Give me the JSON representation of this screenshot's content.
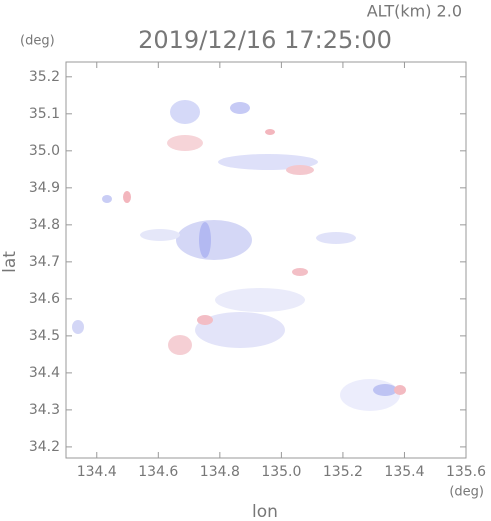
{
  "chart_data": {
    "type": "field",
    "title": "2019/12/16 17:25:00",
    "subtitle": "ALT(km) 2.0",
    "x_label": "lon",
    "x_unit": "(deg)",
    "y_label": "lat",
    "y_unit": "(deg)",
    "xlim": [
      134.3,
      135.6
    ],
    "xticks": [
      134.4,
      134.6,
      134.8,
      {
        "value": 135.0,
        "label": "135.0"
      },
      135.2,
      135.4,
      135.6
    ],
    "ylim": [
      34.17,
      35.24
    ],
    "yticks": [
      34.2,
      34.3,
      34.4,
      34.5,
      34.6,
      34.7,
      34.8,
      34.9,
      {
        "value": 35.0,
        "label": "35.0"
      },
      35.1,
      35.2
    ]
  }
}
